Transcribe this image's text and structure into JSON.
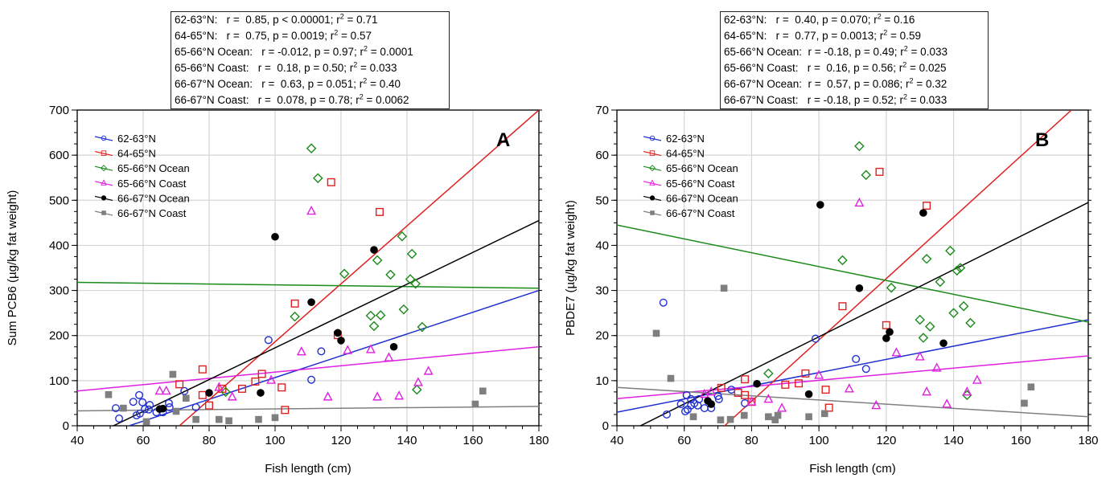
{
  "chart_data": [
    {
      "panel_letter": "A",
      "type": "scatter",
      "xlabel": "Fish length (cm)",
      "ylabel": "Sum PCB6 (µg/kg fat weight)",
      "xlim": [
        40,
        180
      ],
      "ylim": [
        0,
        700
      ],
      "xticks": [
        40,
        60,
        80,
        100,
        120,
        140,
        160,
        180
      ],
      "yticks": [
        0,
        100,
        200,
        300,
        400,
        500,
        600,
        700
      ],
      "grid": true,
      "legend_position": "top-left",
      "stats": [
        {
          "pre": "62-63°N:   r =  0.85, p < 0.00001; r",
          "sup": "2",
          "post": " = 0.71"
        },
        {
          "pre": "64-65°N:   r =  0.75, p = 0.0019; r",
          "sup": "2",
          "post": " = 0.57"
        },
        {
          "pre": "65-66°N Ocean:   r = -0.012, p = 0.97; r",
          "sup": "2",
          "post": " = 0.0001"
        },
        {
          "pre": "65-66°N Coast:   r =  0.18, p = 0.50; r",
          "sup": "2",
          "post": " = 0.033"
        },
        {
          "pre": "66-67°N Ocean:   r =  0.63, p = 0.051; r",
          "sup": "2",
          "post": " = 0.40"
        },
        {
          "pre": "66-67°N Coast:   r =  0.078, p = 0.78; r",
          "sup": "2",
          "post": " = 0.0062"
        }
      ],
      "series": [
        {
          "name": "62-63°N",
          "color": "#2030d0",
          "marker": "circle-open",
          "fit": [
            [
              40,
              -38
            ],
            [
              180,
              300
            ]
          ],
          "points": [
            [
              51.7,
              39
            ],
            [
              52.7,
              16
            ],
            [
              57,
              53
            ],
            [
              58.8,
              68
            ],
            [
              59.8,
              52
            ],
            [
              58,
              23
            ],
            [
              59,
              27
            ],
            [
              60.5,
              37
            ],
            [
              61.7,
              36
            ],
            [
              62,
              46
            ],
            [
              64,
              30
            ],
            [
              66,
              30
            ],
            [
              67.8,
              50
            ],
            [
              68,
              41
            ],
            [
              72.5,
              77
            ],
            [
              76,
              41
            ],
            [
              98,
              190
            ],
            [
              111,
              102
            ],
            [
              114,
              165
            ]
          ]
        },
        {
          "name": "64-65°N",
          "color": "#e02020",
          "marker": "square-open",
          "fit": [
            [
              71,
              0
            ],
            [
              180,
              700
            ]
          ],
          "points": [
            [
              71,
              92
            ],
            [
              78,
              125
            ],
            [
              78,
              68
            ],
            [
              80,
              45
            ],
            [
              84,
              82
            ],
            [
              90,
              82
            ],
            [
              94,
              98
            ],
            [
              96,
              115
            ],
            [
              102,
              85
            ],
            [
              103,
              35
            ],
            [
              106,
              271
            ],
            [
              117,
              540
            ],
            [
              119,
              201
            ],
            [
              131.7,
              474
            ]
          ]
        },
        {
          "name": "65-66°N Ocean",
          "color": "#1a8a1a",
          "marker": "diamond-open",
          "fit": [
            [
              40,
              318
            ],
            [
              180,
              305
            ]
          ],
          "points": [
            [
              85,
              75
            ],
            [
              106,
              242
            ],
            [
              111,
              615
            ],
            [
              113,
              549
            ],
            [
              121,
              337
            ],
            [
              129,
              244
            ],
            [
              130,
              221
            ],
            [
              131,
              367
            ],
            [
              132,
              245
            ],
            [
              135,
              335
            ],
            [
              138.5,
              420
            ],
            [
              139,
              258
            ],
            [
              141,
              325
            ],
            [
              141.5,
              381
            ],
            [
              142.6,
              315
            ],
            [
              143,
              80
            ],
            [
              144.6,
              219
            ]
          ]
        },
        {
          "name": "65-66°N Coast",
          "color": "#e020e0",
          "marker": "triangle-open",
          "fit": [
            [
              40,
              77
            ],
            [
              180,
              175
            ]
          ],
          "points": [
            [
              65,
              77
            ],
            [
              67,
              77
            ],
            [
              83,
              85
            ],
            [
              87,
              64
            ],
            [
              98.8,
              101
            ],
            [
              108,
              164
            ],
            [
              111,
              476
            ],
            [
              116,
              64
            ],
            [
              122,
              167
            ],
            [
              129,
              169
            ],
            [
              131,
              64
            ],
            [
              134.5,
              151
            ],
            [
              137.6,
              66
            ],
            [
              143.4,
              96
            ],
            [
              146.5,
              121
            ]
          ]
        },
        {
          "name": "66-67°N Ocean",
          "color": "#000000",
          "marker": "circle-filled",
          "fit": [
            [
              51,
              0
            ],
            [
              180,
              455
            ]
          ],
          "points": [
            [
              65,
              37
            ],
            [
              66,
              38
            ],
            [
              80,
              73
            ],
            [
              95.6,
              73
            ],
            [
              100,
              419
            ],
            [
              111,
              274
            ],
            [
              119,
              206
            ],
            [
              120,
              189
            ],
            [
              130,
              390
            ],
            [
              136,
              175
            ]
          ]
        },
        {
          "name": "66-67°N Coast",
          "color": "#7f7f7f",
          "marker": "square-filled",
          "fit": [
            [
              40,
              33
            ],
            [
              180,
              43
            ]
          ],
          "points": [
            [
              49.5,
              69
            ],
            [
              54,
              39
            ],
            [
              61,
              9
            ],
            [
              69,
              114
            ],
            [
              70,
              32
            ],
            [
              73,
              61
            ],
            [
              76,
              14
            ],
            [
              83,
              14
            ],
            [
              86,
              11
            ],
            [
              95,
              14
            ],
            [
              100,
              18
            ],
            [
              160.7,
              48
            ],
            [
              163,
              77
            ]
          ]
        }
      ]
    },
    {
      "panel_letter": "B",
      "type": "scatter",
      "xlabel": "Fish length (cm)",
      "ylabel": "PBDE7 (µg/kg fat weight)",
      "xlim": [
        40,
        180
      ],
      "ylim": [
        0,
        70
      ],
      "xticks": [
        40,
        60,
        80,
        100,
        120,
        140,
        160,
        180
      ],
      "yticks": [
        0,
        10,
        20,
        30,
        40,
        50,
        60,
        70
      ],
      "grid": true,
      "legend_position": "top-left",
      "stats": [
        {
          "pre": "62-63°N:   r =  0.40, p = 0.070; r",
          "sup": "2",
          "post": " = 0.16"
        },
        {
          "pre": "64-65°N:   r =  0.77, p = 0.0013; r",
          "sup": "2",
          "post": " = 0.59"
        },
        {
          "pre": "65-66°N Ocean:  r = -0.18, p = 0.49; r",
          "sup": "2",
          "post": " = 0.033"
        },
        {
          "pre": "65-66°N Coast:   r =  0.16, p = 0.56; r",
          "sup": "2",
          "post": " = 0.025"
        },
        {
          "pre": "66-67°N Ocean:  r =  0.57, p = 0.086; r",
          "sup": "2",
          "post": " = 0.32"
        },
        {
          "pre": "66-67°N Coast:   r = -0.18, p = 0.52; r",
          "sup": "2",
          "post": " = 0.033"
        }
      ],
      "series": [
        {
          "name": "62-63°N",
          "color": "#2030d0",
          "marker": "circle-open",
          "fit": [
            [
              40,
              3
            ],
            [
              180,
              23.5
            ]
          ],
          "points": [
            [
              53.8,
              27.3
            ],
            [
              54.8,
              2.5
            ],
            [
              59,
              4.8
            ],
            [
              60.7,
              6.8
            ],
            [
              60.3,
              3.2
            ],
            [
              61,
              3.6
            ],
            [
              62,
              5.9
            ],
            [
              62,
              4.5
            ],
            [
              63,
              5
            ],
            [
              64,
              4.5
            ],
            [
              64.4,
              5.9
            ],
            [
              66,
              3.9
            ],
            [
              68,
              3.9
            ],
            [
              70,
              6.6
            ],
            [
              70.3,
              5.9
            ],
            [
              74,
              8
            ],
            [
              78,
              5
            ],
            [
              99,
              19.3
            ],
            [
              111,
              14.8
            ],
            [
              114,
              12.6
            ]
          ]
        },
        {
          "name": "64-65°N",
          "color": "#e02020",
          "marker": "square-open",
          "fit": [
            [
              72,
              0
            ],
            [
              175,
              70
            ]
          ],
          "points": [
            [
              71,
              8.4
            ],
            [
              76,
              7.3
            ],
            [
              78,
              10.3
            ],
            [
              78,
              6.8
            ],
            [
              80,
              5.3
            ],
            [
              90,
              9.1
            ],
            [
              94,
              9.4
            ],
            [
              96,
              11.6
            ],
            [
              102,
              8
            ],
            [
              103,
              4
            ],
            [
              107,
              26.5
            ],
            [
              118,
              56.3
            ],
            [
              120,
              22.3
            ],
            [
              132,
              48.8
            ]
          ]
        },
        {
          "name": "65-66°N Ocean",
          "color": "#1a8a1a",
          "marker": "diamond-open",
          "fit": [
            [
              40,
              44.5
            ],
            [
              180,
              23
            ]
          ],
          "points": [
            [
              85,
              11.6
            ],
            [
              107,
              36.7
            ],
            [
              112,
              62
            ],
            [
              114,
              55.6
            ],
            [
              121.5,
              30.6
            ],
            [
              130,
              23.5
            ],
            [
              131,
              19.5
            ],
            [
              132,
              37
            ],
            [
              133,
              22
            ],
            [
              136,
              31.9
            ],
            [
              139,
              38.8
            ],
            [
              140,
              25
            ],
            [
              141,
              34.4
            ],
            [
              142,
              35
            ],
            [
              143,
              26.5
            ],
            [
              144,
              6.8
            ],
            [
              145,
              22.8
            ]
          ]
        },
        {
          "name": "65-66°N Coast",
          "color": "#e020e0",
          "marker": "triangle-open",
          "fit": [
            [
              40,
              6
            ],
            [
              180,
              15.5
            ]
          ],
          "points": [
            [
              66,
              7
            ],
            [
              68,
              7.5
            ],
            [
              80,
              5.3
            ],
            [
              85,
              5.9
            ],
            [
              89,
              3.9
            ],
            [
              100,
              11.2
            ],
            [
              109,
              8.2
            ],
            [
              112,
              49.4
            ],
            [
              117,
              4.5
            ],
            [
              123,
              16.2
            ],
            [
              130,
              15.3
            ],
            [
              132,
              7.5
            ],
            [
              135,
              12.8
            ],
            [
              138,
              4.8
            ],
            [
              144,
              7.5
            ],
            [
              147,
              10.1
            ]
          ]
        },
        {
          "name": "66-67°N Ocean",
          "color": "#000000",
          "marker": "circle-filled",
          "fit": [
            [
              47,
              0
            ],
            [
              180,
              49.5
            ]
          ],
          "points": [
            [
              67,
              5.5
            ],
            [
              68,
              4.8
            ],
            [
              81.6,
              9.3
            ],
            [
              97,
              7
            ],
            [
              100.4,
              49
            ],
            [
              112,
              30.5
            ],
            [
              120,
              19.4
            ],
            [
              121,
              20.8
            ],
            [
              131,
              47.2
            ],
            [
              137,
              18.3
            ]
          ]
        },
        {
          "name": "66-67°N Coast",
          "color": "#7f7f7f",
          "marker": "square-filled",
          "fit": [
            [
              40,
              8.5
            ],
            [
              180,
              2
            ]
          ],
          "points": [
            [
              51.7,
              20.5
            ],
            [
              56,
              10.5
            ],
            [
              62.7,
              2
            ],
            [
              70.8,
              1.3
            ],
            [
              71.8,
              30.5
            ],
            [
              73.7,
              1.4
            ],
            [
              77.8,
              2.3
            ],
            [
              85,
              2
            ],
            [
              87,
              1.3
            ],
            [
              87.8,
              2.3
            ],
            [
              97,
              2
            ],
            [
              101.7,
              2.7
            ],
            [
              161,
              5
            ],
            [
              163,
              8.6
            ]
          ]
        }
      ]
    }
  ]
}
